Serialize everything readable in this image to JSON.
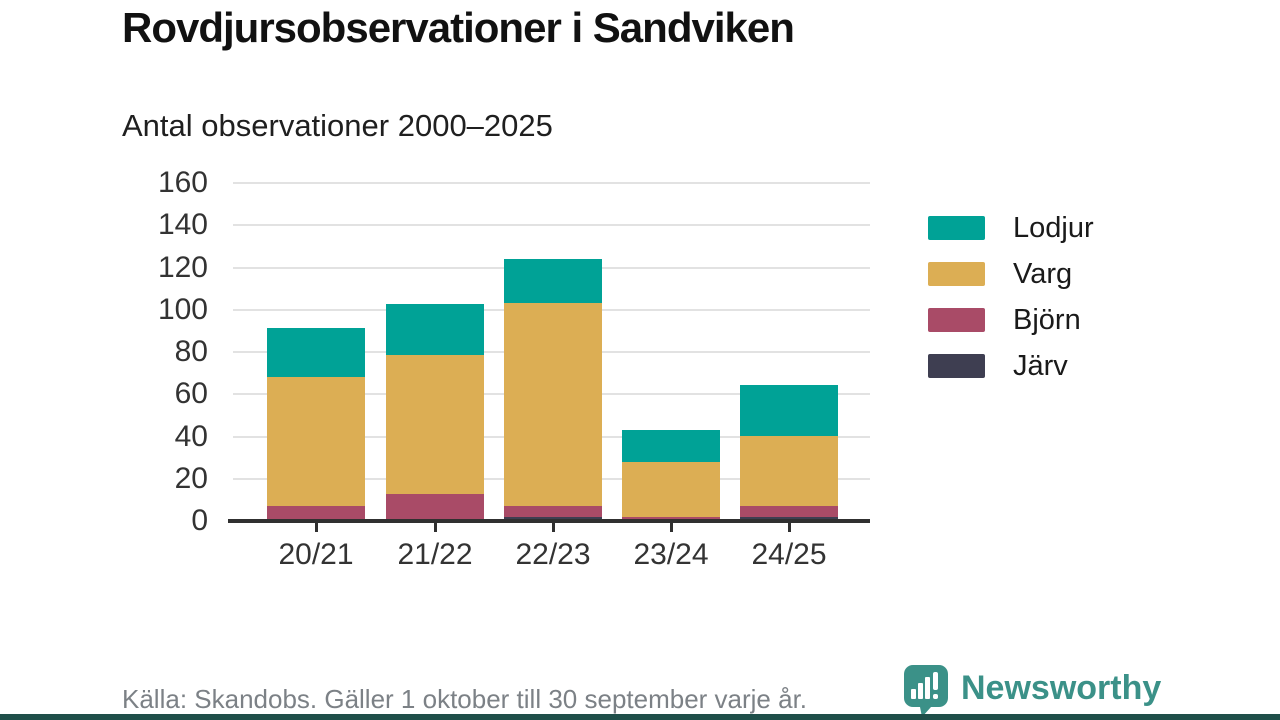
{
  "header": {
    "title": "Rovdjursobservationer i Sandviken",
    "subtitle": "Antal observationer 2000–2025"
  },
  "chart_data": {
    "type": "bar",
    "stacked": true,
    "title": "Rovdjursobservationer i Sandviken",
    "subtitle": "Antal observationer 2000–2025",
    "categories": [
      "20/21",
      "21/22",
      "22/23",
      "23/24",
      "24/25"
    ],
    "series": [
      {
        "name": "Lodjur",
        "color": "#00a296",
        "values": [
          23,
          24,
          21,
          15,
          24
        ]
      },
      {
        "name": "Varg",
        "color": "#dcae54",
        "values": [
          61,
          66,
          96,
          26,
          33
        ]
      },
      {
        "name": "Björn",
        "color": "#a94b67",
        "values": [
          7,
          13,
          5,
          1,
          5
        ]
      },
      {
        "name": "Järv",
        "color": "#3e3e51",
        "values": [
          0,
          0,
          2,
          1,
          2
        ]
      }
    ],
    "totals": [
      91,
      103,
      124,
      43,
      64
    ],
    "xlabel": "",
    "ylabel": "",
    "ylim": [
      0,
      160
    ],
    "yticks": [
      0,
      20,
      40,
      60,
      80,
      100,
      120,
      140,
      160
    ],
    "grid": true,
    "legend_position": "right"
  },
  "legend": {
    "items": [
      "Lodjur",
      "Varg",
      "Björn",
      "Järv"
    ]
  },
  "footer": {
    "source": "Källa: Skandobs. Gäller 1 oktober till 30 september varje år.",
    "brand": "Newsworthy"
  },
  "colors": {
    "axis": "#303030",
    "gridline": "#e2e2e2",
    "tick_text": "#333333",
    "title_text": "#111111",
    "footer_text": "#7c8186",
    "brand_teal": "#3b9188",
    "bottom_strip": "#1f4f4a"
  }
}
